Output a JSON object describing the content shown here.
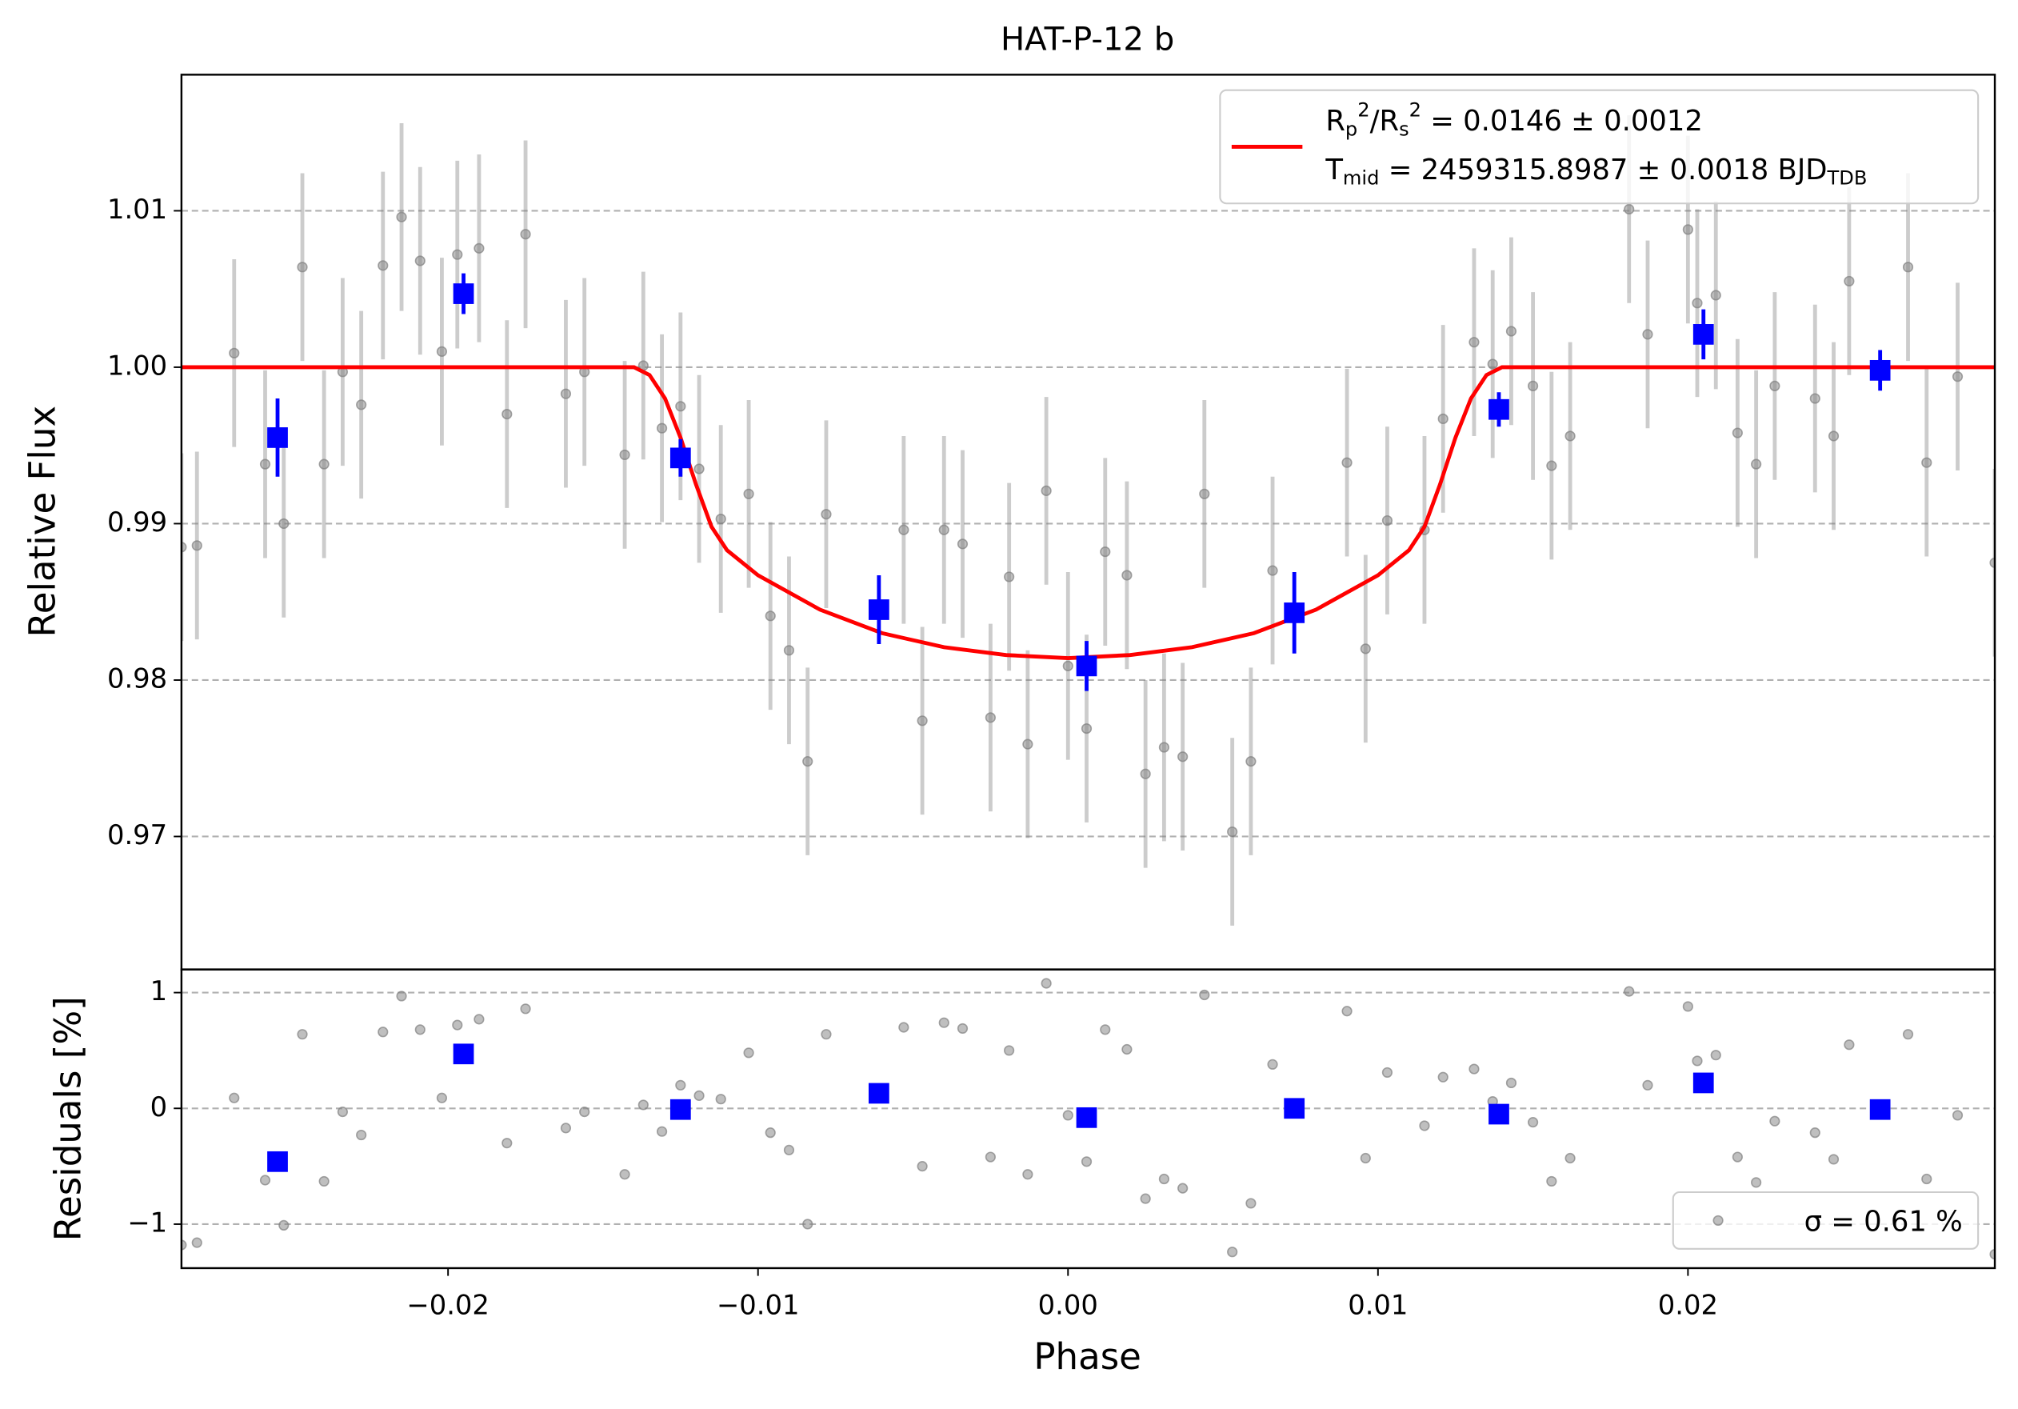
{
  "chart_data": [
    {
      "type": "scatter",
      "title": "HAT-P-12 b",
      "ylabel": "Relative Flux",
      "xlim": [
        -0.0286,
        0.0299
      ],
      "ylim": [
        0.9615,
        1.0187
      ],
      "yticks": [
        0.97,
        0.98,
        0.99,
        {
          "value": 1.0,
          "label": "1.00"
        },
        1.01
      ],
      "grid": true,
      "legend": "upper right",
      "series": [
        {
          "type": "scatter",
          "marker": "circle",
          "color": "#808080",
          "x": [
            -0.0286,
            -0.0281,
            -0.0269,
            -0.0259,
            -0.0253,
            -0.0247,
            -0.024,
            -0.0234,
            -0.0228,
            -0.0221,
            -0.0215,
            -0.0209,
            -0.0202,
            -0.0197,
            -0.019,
            -0.0181,
            -0.0175,
            -0.0162,
            -0.0156,
            -0.0143,
            -0.0137,
            -0.0131,
            -0.0125,
            -0.0119,
            -0.0112,
            -0.0103,
            -0.0096,
            -0.009,
            -0.0084,
            -0.0078,
            -0.0053,
            -0.0047,
            -0.004,
            -0.0034,
            -0.0025,
            -0.0019,
            -0.0013,
            -0.0007,
            0.0,
            0.0006,
            0.0012,
            0.0019,
            0.0025,
            0.0031,
            0.0037,
            0.0044,
            0.0053,
            0.0059,
            0.0066,
            0.009,
            0.0096,
            0.0103,
            0.0115,
            0.0121,
            0.0131,
            0.0137,
            0.0143,
            0.015,
            0.0156,
            0.0162,
            0.0181,
            0.0187,
            0.02,
            0.0203,
            0.0209,
            0.0216,
            0.0222,
            0.0228,
            0.0241,
            0.0247,
            0.0252,
            0.0271,
            0.0277,
            0.0287,
            0.0299
          ],
          "values": [
            0.9885,
            0.9886,
            1.0009,
            0.9938,
            0.99,
            1.0064,
            0.9938,
            0.9997,
            0.9976,
            1.0065,
            1.0096,
            1.0068,
            1.001,
            1.0072,
            1.0076,
            0.997,
            1.0085,
            0.9983,
            0.9997,
            0.9944,
            1.0001,
            0.9961,
            0.9975,
            0.9935,
            0.9903,
            0.9919,
            0.9841,
            0.9819,
            0.9748,
            0.9906,
            0.9896,
            0.9774,
            0.9896,
            0.9887,
            0.9776,
            0.9866,
            0.9759,
            0.9921,
            0.9809,
            0.9769,
            0.9882,
            0.9867,
            0.974,
            0.9757,
            0.9751,
            0.9919,
            0.9703,
            0.9748,
            0.987,
            0.9939,
            0.982,
            0.9902,
            0.9896,
            0.9967,
            1.0016,
            1.0002,
            1.0023,
            0.9988,
            0.9937,
            0.9956,
            1.0101,
            1.0021,
            1.0088,
            1.0041,
            1.0046,
            0.9958,
            0.9938,
            0.9988,
            0.998,
            0.9956,
            1.0055,
            1.0064,
            0.9939,
            0.9994,
            0.9875
          ],
          "errors": [
            0.006,
            0.006,
            0.006,
            0.006,
            0.006,
            0.006,
            0.006,
            0.006,
            0.006,
            0.006,
            0.006,
            0.006,
            0.006,
            0.006,
            0.006,
            0.006,
            0.006,
            0.006,
            0.006,
            0.006,
            0.006,
            0.006,
            0.006,
            0.006,
            0.006,
            0.006,
            0.006,
            0.006,
            0.006,
            0.006,
            0.006,
            0.006,
            0.006,
            0.006,
            0.006,
            0.006,
            0.006,
            0.006,
            0.006,
            0.006,
            0.006,
            0.006,
            0.006,
            0.006,
            0.006,
            0.006,
            0.006,
            0.006,
            0.006,
            0.006,
            0.006,
            0.006,
            0.006,
            0.006,
            0.006,
            0.006,
            0.006,
            0.006,
            0.006,
            0.006,
            0.006,
            0.006,
            0.006,
            0.006,
            0.006,
            0.006,
            0.006,
            0.006,
            0.006,
            0.006,
            0.006,
            0.006,
            0.006,
            0.006,
            0.006
          ]
        },
        {
          "type": "line",
          "name": [
            "R_p^2/R_s^2 = 0.0146 ± 0.0012",
            "T_{mid} = 2459315.8987 ± 0.0018 BJD_{TDB}"
          ],
          "color": "#ff0000",
          "x": [
            -0.0286,
            -0.014,
            -0.0135,
            -0.013,
            -0.0125,
            -0.012,
            -0.0115,
            -0.011,
            -0.01,
            -0.008,
            -0.006,
            -0.004,
            -0.002,
            0,
            0.002,
            0.004,
            0.006,
            0.008,
            0.01,
            0.011,
            0.0115,
            0.012,
            0.0125,
            0.013,
            0.0135,
            0.014,
            0.0299
          ],
          "values": [
            1,
            1,
            0.9995,
            0.998,
            0.9955,
            0.9925,
            0.9898,
            0.9883,
            0.9867,
            0.9845,
            0.983,
            0.9821,
            0.9816,
            0.9814,
            0.9816,
            0.9821,
            0.983,
            0.9845,
            0.9867,
            0.9883,
            0.9898,
            0.9925,
            0.9955,
            0.998,
            0.9995,
            1,
            1
          ]
        },
        {
          "type": "scatter",
          "marker": "square",
          "color": "#0000ff",
          "x": [
            -0.0255,
            -0.0195,
            -0.0125,
            -0.0061,
            0.0006,
            0.0073,
            0.0139,
            0.0205,
            0.0262
          ],
          "values": [
            0.9955,
            1.0047,
            0.9942,
            0.9845,
            0.9809,
            0.9843,
            0.9973,
            1.0021,
            0.9998
          ],
          "errors": [
            0.0025,
            0.0013,
            0.0012,
            0.0022,
            0.0016,
            0.0026,
            0.0011,
            0.0016,
            0.0013
          ]
        }
      ]
    },
    {
      "type": "scatter",
      "xlabel": "Phase",
      "ylabel": "Residuals [%]",
      "xlim": [
        -0.0286,
        0.0299
      ],
      "ylim": [
        -1.38,
        1.2
      ],
      "xticks": [
        {
          "value": -0.02,
          "label": "−0.02"
        },
        {
          "value": -0.01,
          "label": "−0.01"
        },
        {
          "value": 0,
          "label": "0.00"
        },
        0.01,
        0.02
      ],
      "yticks": [
        {
          "value": -1,
          "label": "−1"
        },
        0,
        1
      ],
      "grid": true,
      "legend": "lower right",
      "series": [
        {
          "type": "scatter",
          "marker": "circle",
          "name": "σ = 0.61 %",
          "color": "#808080",
          "x": [
            -0.0286,
            -0.0281,
            -0.0269,
            -0.0259,
            -0.0253,
            -0.0247,
            -0.024,
            -0.0234,
            -0.0228,
            -0.0221,
            -0.0215,
            -0.0209,
            -0.0202,
            -0.0197,
            -0.019,
            -0.0181,
            -0.0175,
            -0.0162,
            -0.0156,
            -0.0143,
            -0.0137,
            -0.0131,
            -0.0125,
            -0.0119,
            -0.0112,
            -0.0103,
            -0.0096,
            -0.009,
            -0.0084,
            -0.0078,
            -0.0053,
            -0.0047,
            -0.004,
            -0.0034,
            -0.0025,
            -0.0019,
            -0.0013,
            -0.0007,
            0.0,
            0.0006,
            0.0012,
            0.0019,
            0.0025,
            0.0031,
            0.0037,
            0.0044,
            0.0053,
            0.0059,
            0.0066,
            0.009,
            0.0096,
            0.0103,
            0.0115,
            0.0121,
            0.0131,
            0.0137,
            0.0143,
            0.015,
            0.0156,
            0.0162,
            0.0181,
            0.0187,
            0.02,
            0.0203,
            0.0209,
            0.0216,
            0.0222,
            0.0228,
            0.0241,
            0.0247,
            0.0252,
            0.0271,
            0.0277,
            0.0287,
            0.0299
          ],
          "values": [
            -1.18,
            -1.16,
            0.09,
            -0.62,
            -1.01,
            0.64,
            -0.63,
            -0.03,
            -0.23,
            0.66,
            0.97,
            0.68,
            0.09,
            0.72,
            0.77,
            -0.3,
            0.86,
            -0.17,
            -0.03,
            -0.57,
            0.03,
            -0.2,
            0.2,
            0.11,
            0.08,
            0.48,
            -0.21,
            -0.36,
            -1.0,
            0.64,
            0.7,
            -0.5,
            0.74,
            0.69,
            -0.42,
            0.5,
            -0.57,
            1.08,
            -0.06,
            -0.46,
            0.68,
            0.51,
            -0.78,
            -0.61,
            -0.69,
            0.98,
            -1.24,
            -0.82,
            0.38,
            0.84,
            -0.43,
            0.31,
            -0.15,
            0.27,
            0.34,
            0.06,
            0.22,
            -0.12,
            -0.63,
            -0.43,
            1.01,
            0.2,
            0.88,
            0.41,
            0.46,
            -0.42,
            -0.64,
            -0.11,
            -0.21,
            -0.44,
            0.55,
            0.64,
            -0.61,
            -0.06,
            -1.26
          ]
        },
        {
          "type": "scatter",
          "marker": "square",
          "color": "#0000ff",
          "x": [
            -0.0255,
            -0.0195,
            -0.0125,
            -0.0061,
            0.0006,
            0.0073,
            0.0139,
            0.0205,
            0.0262
          ],
          "values": [
            -0.46,
            0.47,
            -0.01,
            0.13,
            -0.08,
            0.0,
            -0.05,
            0.22,
            -0.01
          ]
        }
      ]
    }
  ]
}
